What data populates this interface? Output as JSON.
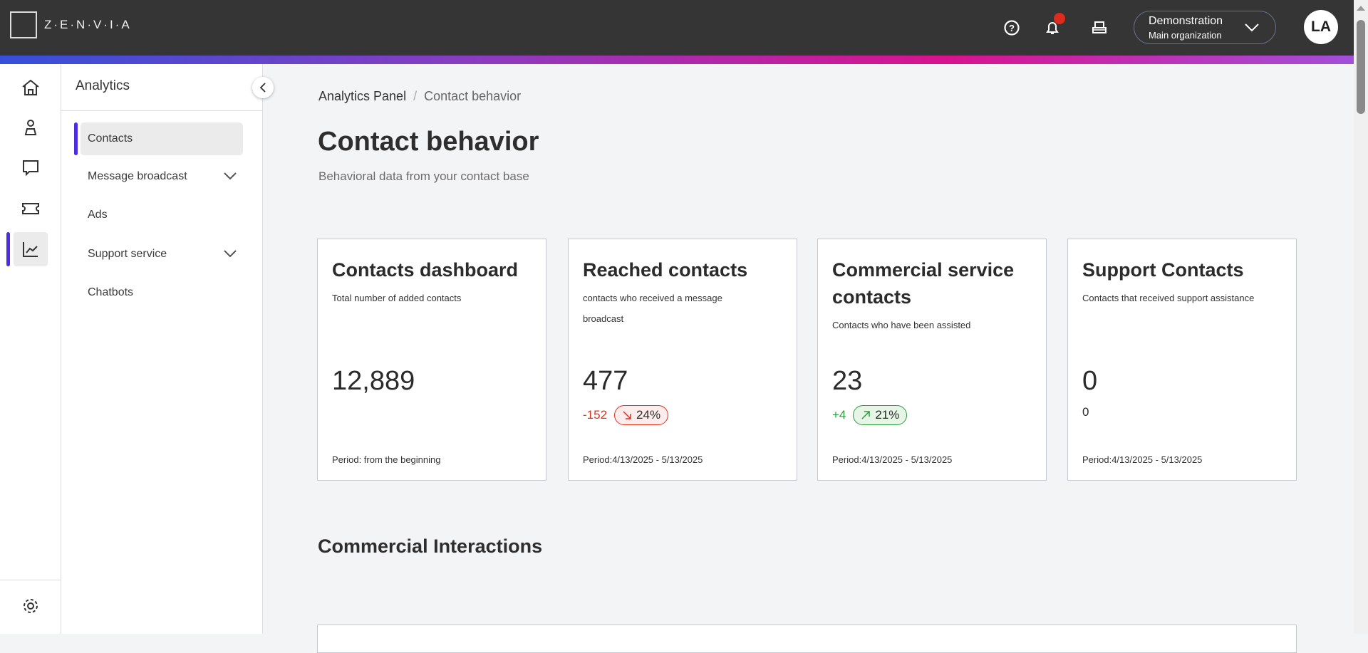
{
  "brand": {
    "logo_text": "Z·E·N·V·I·A"
  },
  "header": {
    "help_icon": "help-circle-icon",
    "bell_icon": "bell-icon",
    "inbox_icon": "inbox-tray-icon",
    "org_name": "Demonstration",
    "org_sub": "Main organization",
    "avatar": "LA",
    "notification_color": "#e02a1e"
  },
  "rail": {
    "items": [
      "home-icon",
      "person-icon",
      "chat-icon",
      "ticket-icon",
      "analytics-chart-icon"
    ],
    "settings": "gear-icon",
    "active": "analytics"
  },
  "submenu": {
    "title": "Analytics",
    "items": [
      {
        "label": "Contacts",
        "active": true
      },
      {
        "label": "Message broadcast",
        "expandable": true
      },
      {
        "label": "Ads"
      },
      {
        "label": "Support service",
        "expandable": true
      },
      {
        "label": "Chatbots"
      }
    ]
  },
  "breadcrumb": {
    "parent": "Analytics Panel",
    "sep": "/",
    "current": "Contact behavior"
  },
  "page": {
    "title": "Contact behavior",
    "subtitle": "Behavioral data from your contact base"
  },
  "cards": [
    {
      "title": "Contacts dashboard",
      "desc": "Total number of added contacts",
      "value": "12,889",
      "period": "Period: from the beginning"
    },
    {
      "title": "Reached contacts",
      "desc": "contacts who received a message broadcast",
      "value": "477",
      "delta": "-152",
      "pct": "24%",
      "trend": "down",
      "period": "Period:4/13/2025 - 5/13/2025"
    },
    {
      "title": "Commercial service contacts",
      "desc": "Contacts who have been assisted",
      "value": "23",
      "delta": "+4",
      "pct": "21%",
      "trend": "up",
      "period": "Period:4/13/2025 - 5/13/2025"
    },
    {
      "title": "Support Contacts",
      "desc": "Contacts that received support assistance",
      "value": "0",
      "delta": "0",
      "period": "Period:4/13/2025 - 5/13/2025"
    }
  ],
  "colors": {
    "accent": "#4c2ee0",
    "negative": "#e0301e",
    "positive": "#2e9a3e"
  },
  "section": {
    "title": "Commercial Interactions"
  }
}
